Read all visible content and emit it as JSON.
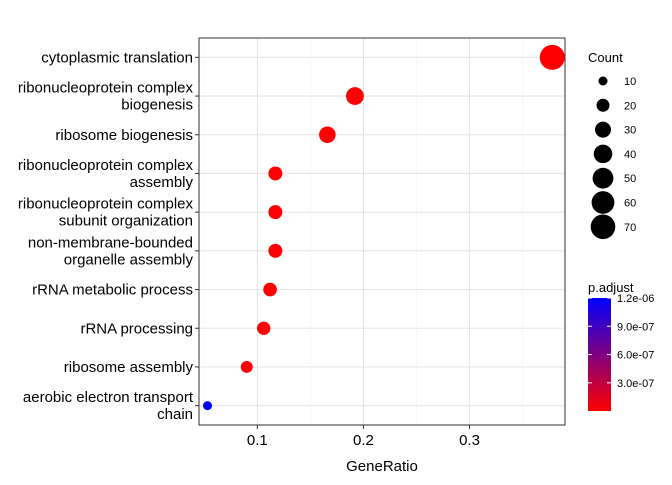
{
  "chart_data": {
    "type": "scatter",
    "title": "",
    "xlabel": "GeneRatio",
    "ylabel": "",
    "xlim": [
      0.045,
      0.39
    ],
    "x_ticks": [
      0.1,
      0.2,
      0.3
    ],
    "x_tick_labels": [
      "0.1",
      "0.2",
      "0.3"
    ],
    "grid": true,
    "legend_position": "right",
    "categories": [
      "cytoplasmic translation",
      "ribonucleoprotein complex\nbiogenesis",
      "ribosome biogenesis",
      "ribonucleoprotein complex\nassembly",
      "ribonucleoprotein complex\nsubunit organization",
      "non-membrane-bounded\norganelle assembly",
      "rRNA metabolic process",
      "rRNA processing",
      "ribosome assembly",
      "aerobic electron transport\nchain"
    ],
    "points": [
      {
        "term": "cytoplasmic translation",
        "gene_ratio": 0.378,
        "count": 72,
        "p_adjust": 1e-09
      },
      {
        "term": "ribonucleoprotein complex biogenesis",
        "gene_ratio": 0.192,
        "count": 37,
        "p_adjust": 1e-09
      },
      {
        "term": "ribosome biogenesis",
        "gene_ratio": 0.166,
        "count": 32,
        "p_adjust": 1e-09
      },
      {
        "term": "ribonucleoprotein complex assembly",
        "gene_ratio": 0.117,
        "count": 23,
        "p_adjust": 1e-09
      },
      {
        "term": "ribonucleoprotein complex subunit organization",
        "gene_ratio": 0.117,
        "count": 23,
        "p_adjust": 1e-09
      },
      {
        "term": "non-membrane-bounded organelle assembly",
        "gene_ratio": 0.117,
        "count": 23,
        "p_adjust": 1e-09
      },
      {
        "term": "rRNA metabolic process",
        "gene_ratio": 0.112,
        "count": 22,
        "p_adjust": 1e-09
      },
      {
        "term": "rRNA processing",
        "gene_ratio": 0.106,
        "count": 21,
        "p_adjust": 1e-09
      },
      {
        "term": "ribosome assembly",
        "gene_ratio": 0.09,
        "count": 17,
        "p_adjust": 1e-09
      },
      {
        "term": "aerobic electron transport chain",
        "gene_ratio": 0.053,
        "count": 10,
        "p_adjust": 1.2e-06
      }
    ],
    "size_legend": {
      "title": "Count",
      "values": [
        10,
        20,
        30,
        40,
        50,
        60,
        70
      ],
      "labels": [
        "10",
        "20",
        "30",
        "40",
        "50",
        "60",
        "70"
      ]
    },
    "color_legend": {
      "title": "p.adjust",
      "range": [
        1e-09,
        1.2e-06
      ],
      "ticks": [
        1.2e-06,
        9e-07,
        6e-07,
        3e-07
      ],
      "labels": [
        "1.2e-06",
        "9.0e-07",
        "6.0e-07",
        "3.0e-07"
      ],
      "low_color": "#FF0000",
      "high_color": "#0000FF"
    }
  }
}
